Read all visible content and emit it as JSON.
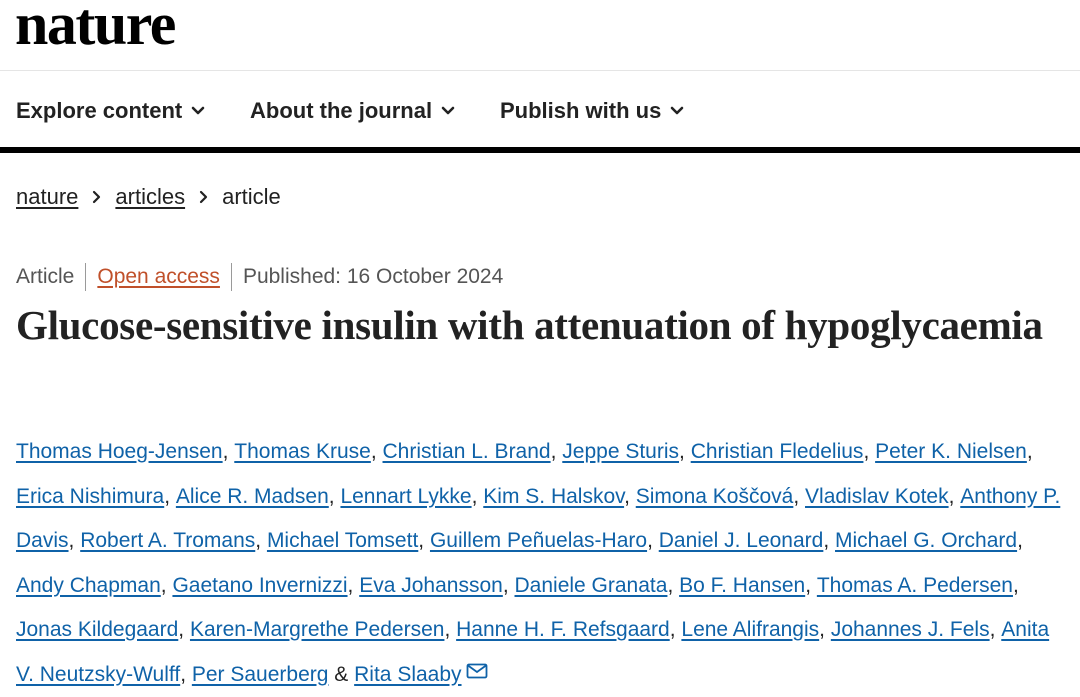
{
  "header": {
    "logo": "nature"
  },
  "nav": {
    "items": [
      {
        "label": "Explore content",
        "icon": "chevron-down-icon"
      },
      {
        "label": "About the journal",
        "icon": "chevron-down-icon"
      },
      {
        "label": "Publish with us",
        "icon": "chevron-down-icon"
      }
    ]
  },
  "breadcrumb": {
    "items": [
      "nature",
      "articles",
      "article"
    ]
  },
  "article": {
    "type": "Article",
    "access": "Open access",
    "published": "Published: 16 October 2024",
    "title": "Glucose-sensitive insulin with attenuation of hypoglycaemia",
    "authors": [
      "Thomas Hoeg-Jensen",
      "Thomas Kruse",
      "Christian L. Brand",
      "Jeppe Sturis",
      "Christian Fledelius",
      "Peter K. Nielsen",
      "Erica Nishimura",
      "Alice R. Madsen",
      "Lennart Lykke",
      "Kim S. Halskov",
      "Simona Koščová",
      "Vladislav Kotek",
      "Anthony P. Davis",
      "Robert A. Tromans",
      "Michael Tomsett",
      "Guillem Peñuelas-Haro",
      "Daniel J. Leonard",
      "Michael G. Orchard",
      "Andy Chapman",
      "Gaetano Invernizzi",
      "Eva Johansson",
      "Daniele Granata",
      "Bo F. Hansen",
      "Thomas A. Pedersen",
      "Jonas Kildegaard",
      "Karen-Margrethe Pedersen",
      "Hanne H. F. Refsgaard",
      "Lene Alifrangis",
      "Johannes J. Fels",
      "Anita V. Neutzsky-Wulff",
      "Per Sauerberg",
      "Rita Slaaby"
    ],
    "separator": ", ",
    "last_separator": " & ",
    "corresponding_icon": "mail-icon"
  },
  "colors": {
    "link": "#0f62a8",
    "open_access": "#c0502a",
    "text": "#222222",
    "meta": "#555555",
    "nav_rule": "#000000"
  }
}
